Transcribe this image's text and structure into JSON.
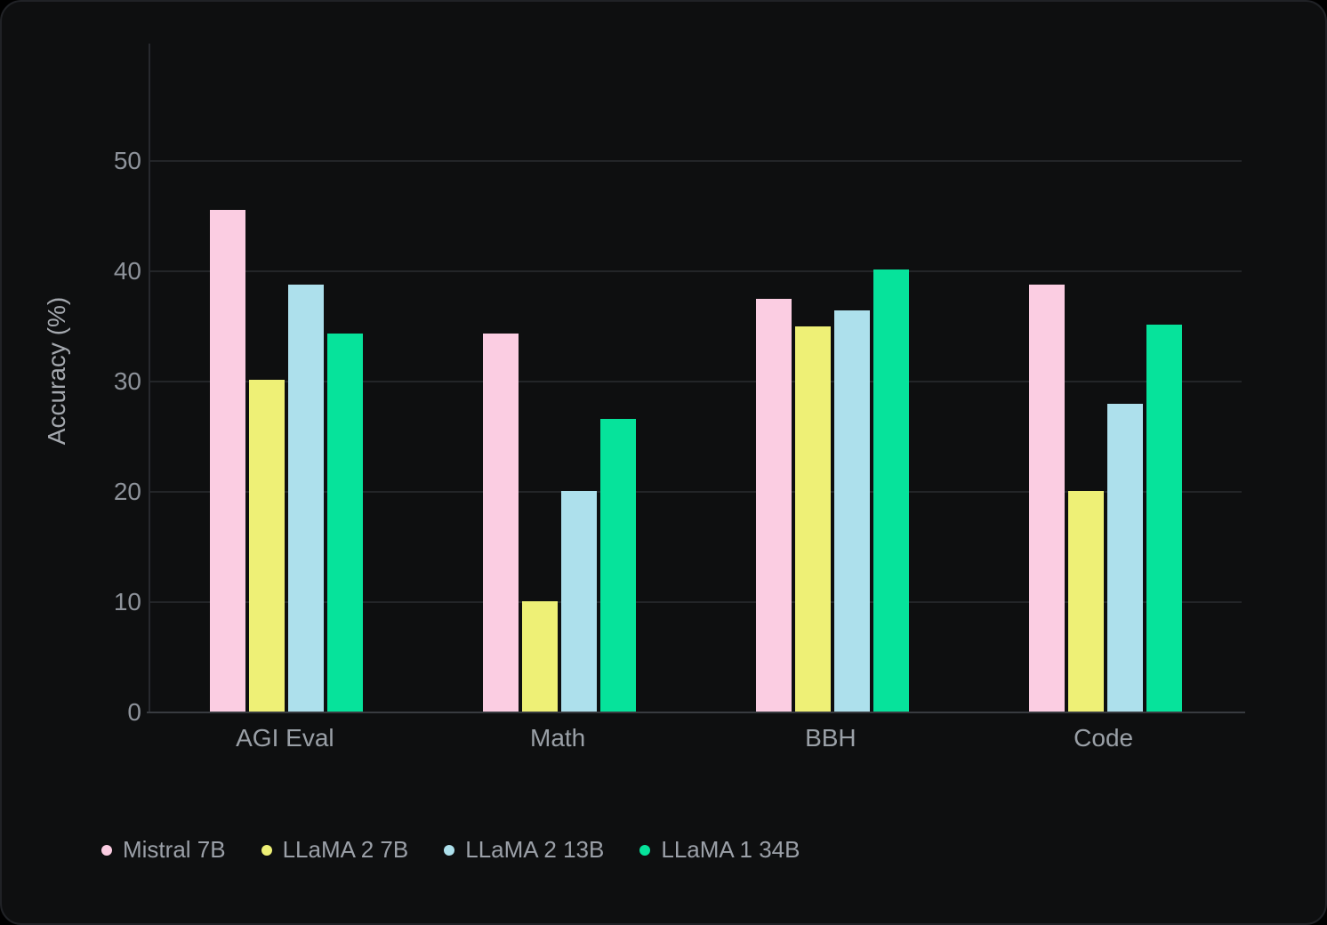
{
  "chart_data": {
    "type": "bar",
    "title": "",
    "xlabel": "",
    "ylabel": "Accuracy (%)",
    "categories": [
      "AGI Eval",
      "Math",
      "BBH",
      "Code"
    ],
    "series": [
      {
        "name": "Mistral 7B",
        "color": "#FBCDE2",
        "values": [
          45.5,
          34.3,
          37.5,
          38.8
        ]
      },
      {
        "name": "LLaMA 2 7B",
        "color": "#EEF076",
        "values": [
          30.1,
          10.1,
          35.0,
          20.1
        ]
      },
      {
        "name": "LLaMA 2 13B",
        "color": "#ADE0EC",
        "values": [
          38.8,
          20.1,
          36.4,
          28.0
        ]
      },
      {
        "name": "LLaMA 1 34B",
        "color": "#06E39B",
        "values": [
          34.3,
          26.6,
          40.1,
          35.1
        ]
      }
    ],
    "y_ticks": [
      0,
      10,
      20,
      30,
      40,
      50
    ],
    "ylim": [
      0,
      60.6
    ],
    "grid": true,
    "legend_position": "bottom-left",
    "theme": "dark"
  }
}
